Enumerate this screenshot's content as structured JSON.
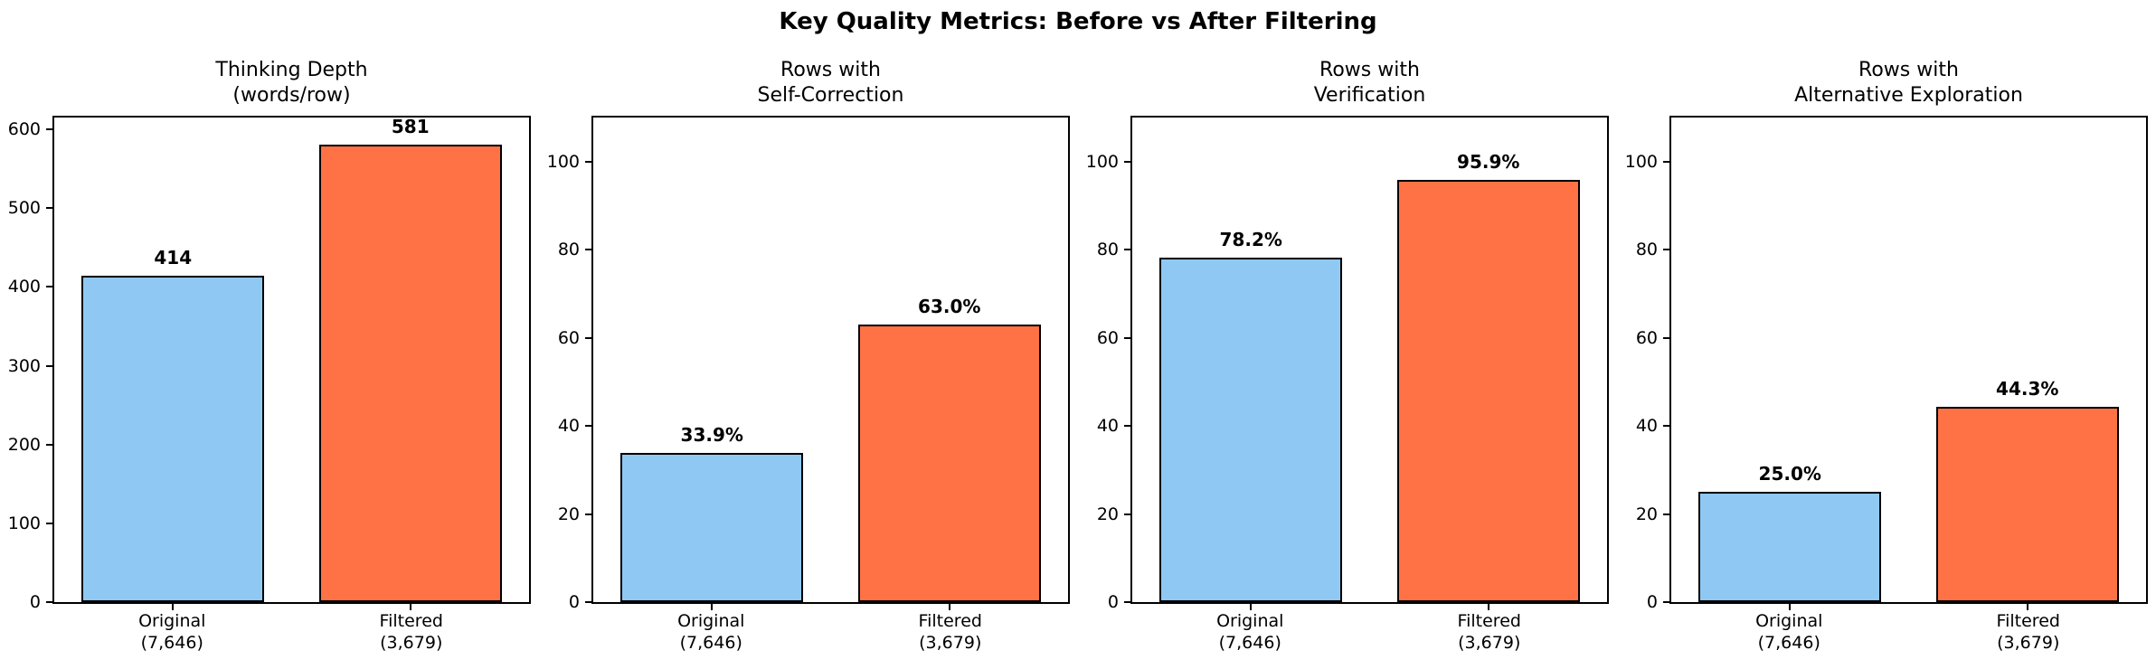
{
  "title": "Key Quality Metrics: Before vs After Filtering",
  "colors": {
    "original_bar": "#8FC9F3",
    "filtered_bar": "#FF7246",
    "bar_edge": "#000000",
    "axes": "#000000",
    "text": "#000000",
    "background": "#FFFFFF"
  },
  "chart_data": [
    {
      "type": "bar",
      "title": "Thinking Depth\n(words/row)",
      "categories": [
        "Original\n(7,646)",
        "Filtered\n(3,679)"
      ],
      "values": [
        414,
        581
      ],
      "value_labels": [
        "414",
        "581"
      ],
      "series_colors": [
        "#8FC9F3",
        "#FF7246"
      ],
      "yticks": [
        0,
        100,
        200,
        300,
        400,
        500,
        600
      ],
      "ylim": [
        0,
        615
      ],
      "xlabel": "",
      "ylabel": "",
      "grid": false,
      "legend": null
    },
    {
      "type": "bar",
      "title": "Rows with\nSelf-Correction",
      "categories": [
        "Original\n(7,646)",
        "Filtered\n(3,679)"
      ],
      "values": [
        33.9,
        63.0
      ],
      "value_labels": [
        "33.9%",
        "63.0%"
      ],
      "series_colors": [
        "#8FC9F3",
        "#FF7246"
      ],
      "yticks": [
        0,
        20,
        40,
        60,
        80,
        100
      ],
      "ylim": [
        0,
        110
      ],
      "xlabel": "",
      "ylabel": "",
      "grid": false,
      "legend": null
    },
    {
      "type": "bar",
      "title": "Rows with\nVerification",
      "categories": [
        "Original\n(7,646)",
        "Filtered\n(3,679)"
      ],
      "values": [
        78.2,
        95.9
      ],
      "value_labels": [
        "78.2%",
        "95.9%"
      ],
      "series_colors": [
        "#8FC9F3",
        "#FF7246"
      ],
      "yticks": [
        0,
        20,
        40,
        60,
        80,
        100
      ],
      "ylim": [
        0,
        110
      ],
      "xlabel": "",
      "ylabel": "",
      "grid": false,
      "legend": null
    },
    {
      "type": "bar",
      "title": "Rows with\nAlternative Exploration",
      "categories": [
        "Original\n(7,646)",
        "Filtered\n(3,679)"
      ],
      "values": [
        25.0,
        44.3
      ],
      "value_labels": [
        "25.0%",
        "44.3%"
      ],
      "series_colors": [
        "#8FC9F3",
        "#FF7246"
      ],
      "yticks": [
        0,
        20,
        40,
        60,
        80,
        100
      ],
      "ylim": [
        0,
        110
      ],
      "xlabel": "",
      "ylabel": "",
      "grid": false,
      "legend": null
    }
  ]
}
